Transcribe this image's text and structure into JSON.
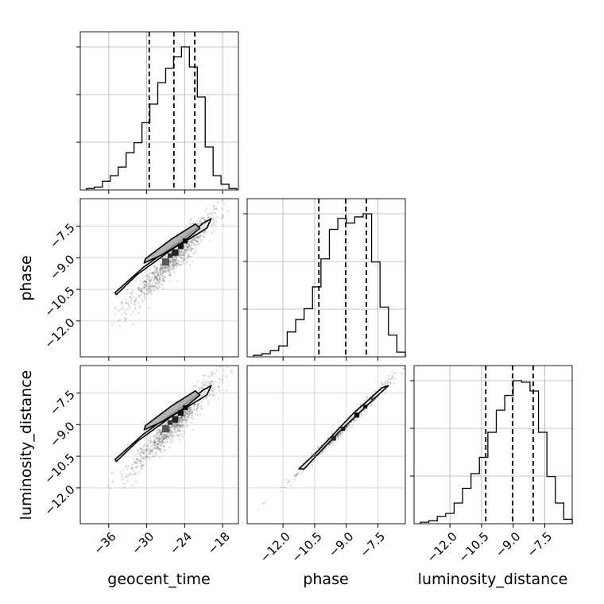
{
  "chart_data": {
    "type": "corner",
    "parameters": [
      "geocent_time",
      "phase",
      "luminosity_distance"
    ],
    "axis_labels": {
      "x": [
        "geocent_time",
        "phase",
        "luminosity_distance"
      ],
      "y": [
        "phase",
        "luminosity_distance"
      ]
    },
    "ticks": {
      "geocent_time": {
        "values": [
          -36,
          -30,
          -24,
          -18
        ],
        "labels": [
          "−36",
          "−30",
          "−24",
          "−18"
        ]
      },
      "phase": {
        "values": [
          -12.0,
          -10.5,
          -9.0,
          -7.5
        ],
        "labels": [
          "−12.0",
          "−10.5",
          "−9.0",
          "−7.5"
        ]
      },
      "luminosity_distance": {
        "values": [
          -12.0,
          -10.5,
          -9.0,
          -7.5
        ],
        "labels": [
          "−12.0",
          "−10.5",
          "−9.0",
          "−7.5"
        ]
      }
    },
    "ranges": {
      "geocent_time": [
        -40.5,
        -15.5
      ],
      "phase": [
        -13.7,
        -6.2
      ],
      "luminosity_distance": [
        -13.7,
        -6.2
      ]
    },
    "quantiles": {
      "geocent_time": [
        -29.6,
        -25.7,
        -22.4
      ],
      "phase": [
        -10.3,
        -9.03,
        -8.05
      ],
      "luminosity_distance": [
        -10.3,
        -9.03,
        -8.05
      ]
    },
    "histograms": {
      "geocent_time": {
        "edges": [
          -39.5,
          -38.25,
          -37.0,
          -35.75,
          -34.5,
          -33.25,
          -32.0,
          -30.75,
          -29.5,
          -28.25,
          -27.0,
          -25.75,
          -24.5,
          -23.25,
          -22.0,
          -20.75,
          -19.5,
          -18.25,
          -17.0,
          -15.75
        ],
        "counts": [
          1,
          2,
          6,
          10,
          16,
          26,
          33,
          47,
          60,
          75,
          85,
          93,
          100,
          86,
          65,
          30,
          10,
          4,
          1
        ]
      },
      "phase": {
        "edges": [
          -13.4,
          -13.0,
          -12.6,
          -12.2,
          -11.8,
          -11.4,
          -11.0,
          -10.6,
          -10.2,
          -9.8,
          -9.4,
          -9.0,
          -8.6,
          -8.2,
          -7.8,
          -7.4,
          -7.0,
          -6.6,
          -6.2
        ],
        "counts": [
          1,
          2,
          4,
          7,
          16,
          24,
          31,
          45,
          63,
          82,
          89,
          86,
          90,
          92,
          61,
          32,
          14,
          3
        ]
      },
      "luminosity_distance": {
        "edges": [
          -13.4,
          -13.0,
          -12.6,
          -12.2,
          -11.8,
          -11.4,
          -11.0,
          -10.6,
          -10.2,
          -9.8,
          -9.4,
          -9.0,
          -8.6,
          -8.2,
          -7.8,
          -7.4,
          -7.0,
          -6.6,
          -6.2
        ],
        "counts": [
          1,
          2,
          5,
          7,
          14,
          24,
          34,
          45,
          62,
          77,
          87,
          97,
          96,
          90,
          62,
          32,
          14,
          3
        ]
      }
    },
    "contours": {
      "geocent_time_vs_phase": [
        {
          "level": "outer",
          "x": [
            -35.0,
            -30.5,
            -24.0,
            -21.0,
            -19.8,
            -20.5,
            -26.0,
            -31.5,
            -34.8
          ],
          "y": [
            -10.65,
            -9.45,
            -8.05,
            -7.35,
            -7.15,
            -7.6,
            -8.6,
            -9.8,
            -10.75
          ]
        },
        {
          "level": "inner",
          "x": [
            -30.2,
            -26.0,
            -22.3,
            -21.6,
            -24.0,
            -27.5,
            -30.4
          ],
          "y": [
            -9.05,
            -8.1,
            -7.4,
            -7.6,
            -8.2,
            -8.85,
            -9.25
          ]
        }
      ],
      "geocent_time_vs_luminosity_distance": [
        {
          "level": "outer",
          "x": [
            -35.0,
            -30.5,
            -24.0,
            -21.0,
            -19.8,
            -20.5,
            -26.0,
            -31.5,
            -34.8
          ],
          "y": [
            -10.65,
            -9.45,
            -8.05,
            -7.35,
            -7.15,
            -7.6,
            -8.6,
            -9.8,
            -10.75
          ]
        },
        {
          "level": "inner",
          "x": [
            -30.2,
            -26.0,
            -22.3,
            -21.6,
            -24.0,
            -27.5,
            -30.4
          ],
          "y": [
            -9.05,
            -8.1,
            -7.4,
            -7.6,
            -8.2,
            -8.85,
            -9.25
          ]
        }
      ],
      "phase_vs_luminosity_distance": [
        {
          "level": "outer",
          "x": [
            -11.0,
            -9.4,
            -7.6,
            -7.0,
            -7.3,
            -8.7,
            -10.4,
            -11.25
          ],
          "y": [
            -11.1,
            -9.4,
            -7.7,
            -7.15,
            -7.25,
            -8.5,
            -10.3,
            -11.1
          ]
        }
      ]
    },
    "grid": true
  }
}
